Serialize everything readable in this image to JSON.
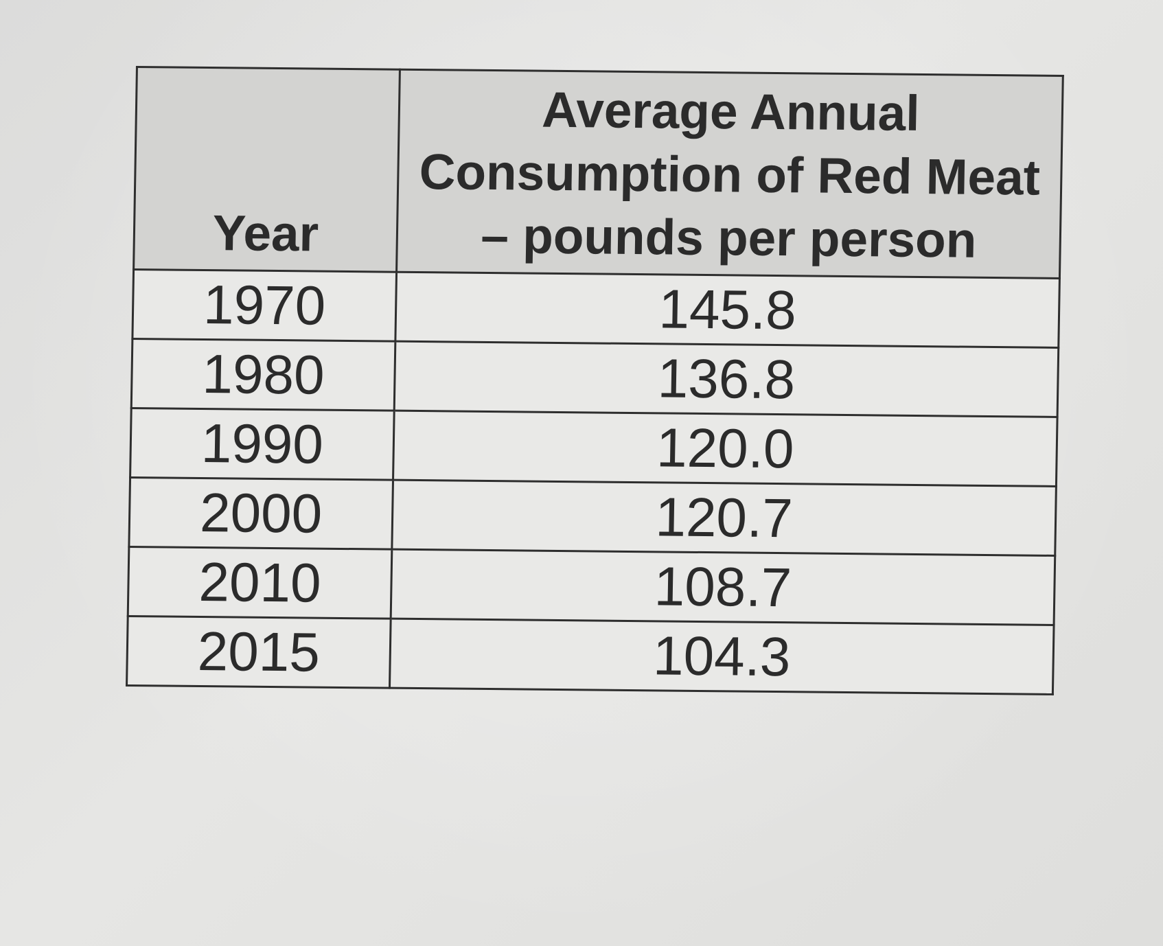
{
  "table": {
    "headers": {
      "year": "Year",
      "consumption": "Average Annual Consumption of Red Meat – pounds per person"
    },
    "rows": [
      {
        "year": "1970",
        "value": "145.8"
      },
      {
        "year": "1980",
        "value": "136.8"
      },
      {
        "year": "1990",
        "value": "120.0"
      },
      {
        "year": "2000",
        "value": "120.7"
      },
      {
        "year": "2010",
        "value": "108.7"
      },
      {
        "year": "2015",
        "value": "104.3"
      }
    ]
  }
}
